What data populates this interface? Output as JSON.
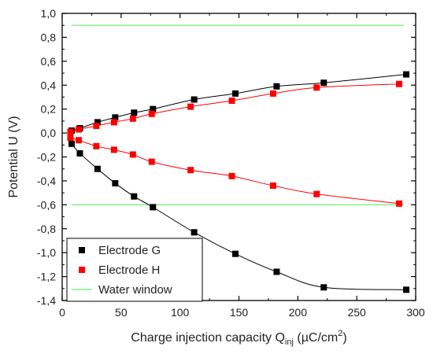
{
  "chart_data": {
    "type": "scatter",
    "xlabel": "Charge injection capacity Q",
    "xlabel_sub": "inj",
    "xlabel_unit": " (µC/cm",
    "xlabel_sup": "2",
    "xlabel_end": ")",
    "ylabel": "Potential U (V)",
    "xlim": [
      0,
      300
    ],
    "ylim": [
      -1.4,
      1.0
    ],
    "x_ticks": [
      0,
      50,
      100,
      150,
      200,
      250,
      300
    ],
    "x_tick_labels": [
      "0",
      "50",
      "100",
      "150",
      "200",
      "250",
      "300"
    ],
    "y_ticks": [
      -1.4,
      -1.2,
      -1.0,
      -0.8,
      -0.6,
      -0.4,
      -0.2,
      0.0,
      0.2,
      0.4,
      0.6,
      0.8,
      1.0
    ],
    "y_tick_labels": [
      "-1,4",
      "-1,2",
      "-1,0",
      "-0,8",
      "-0,6",
      "-0,4",
      "-0,2",
      "0,0",
      "0,2",
      "0,4",
      "0,6",
      "0,8",
      "1,0"
    ],
    "grid": false,
    "legend_position": "bottom-left",
    "series": [
      {
        "name": "Electrode G",
        "color": "#000000",
        "marker": "square",
        "branches": [
          {
            "x": [
              8,
              15,
              30,
              45,
              61,
              77,
              112,
              147,
              182,
              222,
              292
            ],
            "y": [
              0.02,
              0.04,
              0.09,
              0.13,
              0.17,
              0.2,
              0.28,
              0.33,
              0.39,
              0.42,
              0.49
            ]
          },
          {
            "x": [
              8,
              15,
              30,
              45,
              61,
              77,
              112,
              147,
              182,
              222,
              292
            ],
            "y": [
              -0.09,
              -0.17,
              -0.3,
              -0.42,
              -0.53,
              -0.62,
              -0.83,
              -1.01,
              -1.16,
              -1.29,
              -1.31
            ]
          }
        ]
      },
      {
        "name": "Electrode H",
        "color": "#ff0000",
        "marker": "square",
        "branches": [
          {
            "x": [
              7,
              14,
              29,
              44,
              60,
              76,
              109,
              144,
              179,
              216,
              286
            ],
            "y": [
              0.01,
              0.03,
              0.06,
              0.09,
              0.12,
              0.16,
              0.22,
              0.27,
              0.33,
              0.38,
              0.41
            ]
          },
          {
            "x": [
              7,
              14,
              29,
              44,
              60,
              76,
              109,
              144,
              179,
              216,
              286
            ],
            "y": [
              -0.04,
              -0.06,
              -0.11,
              -0.14,
              -0.18,
              -0.24,
              -0.31,
              -0.36,
              -0.44,
              -0.51,
              -0.59
            ]
          }
        ]
      },
      {
        "name": "Water window",
        "color": "#66ee66",
        "type": "hline",
        "values": [
          0.9,
          -0.6
        ],
        "xrange": [
          8,
          290
        ]
      }
    ]
  }
}
